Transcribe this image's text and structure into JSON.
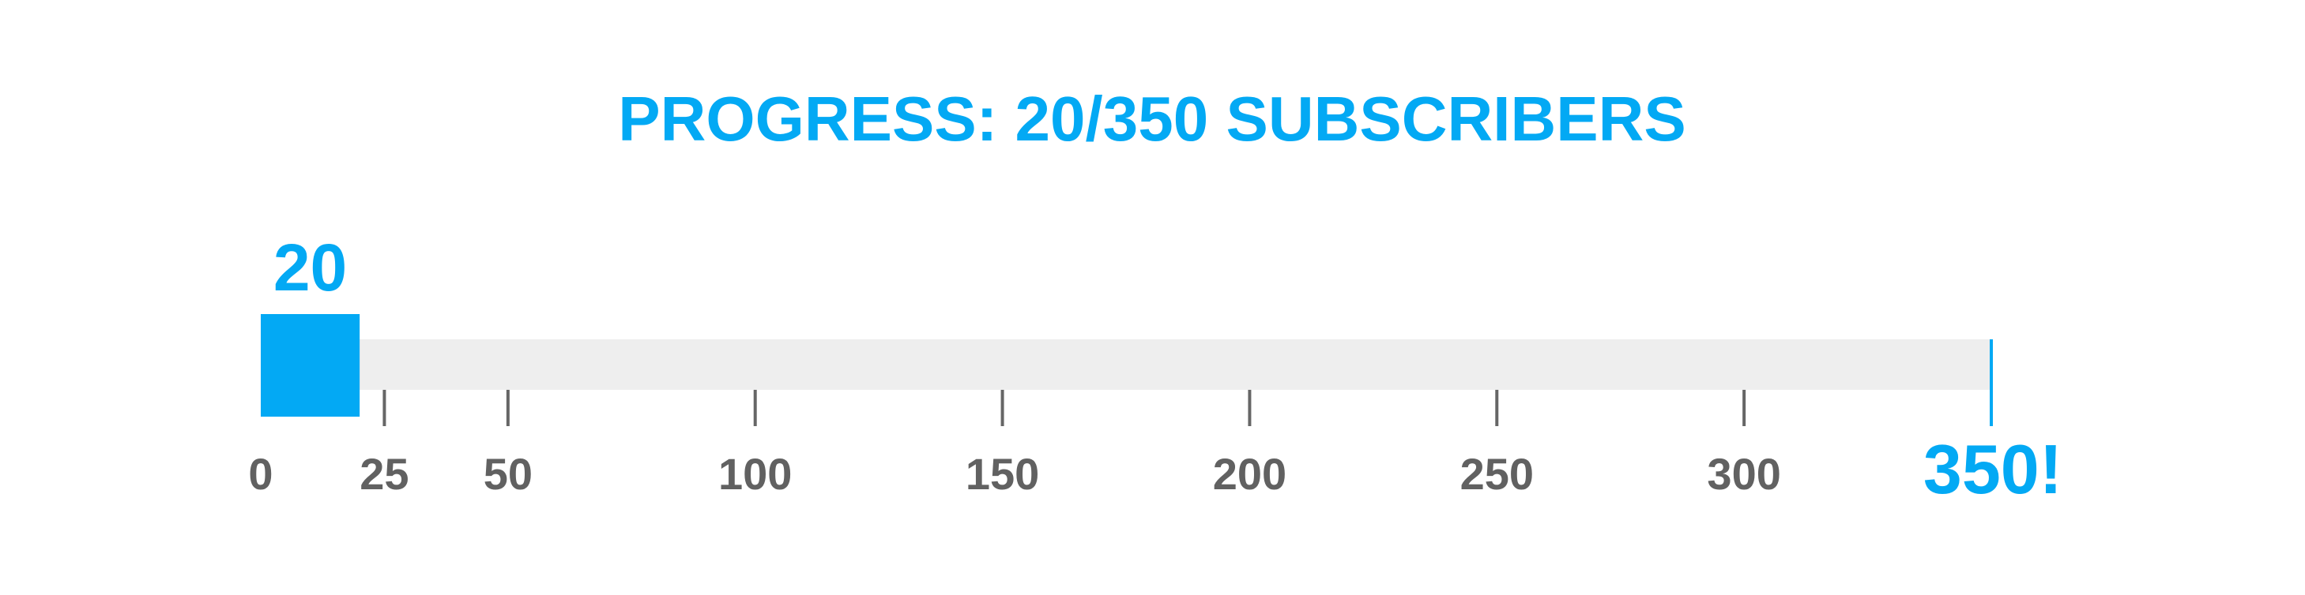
{
  "chart_data": {
    "type": "bar",
    "title": "PROGRESS: 20/350 SUBSCRIBERS",
    "orientation": "horizontal",
    "value": 20,
    "value_label": "20",
    "goal": 350,
    "goal_label": "350!",
    "xlim": [
      0,
      350
    ],
    "ticks": [
      0,
      25,
      50,
      100,
      150,
      200,
      250,
      300
    ],
    "tick_labels": [
      "0",
      "25",
      "50",
      "100",
      "150",
      "200",
      "250",
      "300"
    ],
    "grid": false,
    "legend": "none"
  },
  "colors": {
    "accent": "#03A9F4",
    "track": "#EEEEEE",
    "tick": "#666666",
    "tick_label": "#616161",
    "background": "#FFFFFF"
  }
}
